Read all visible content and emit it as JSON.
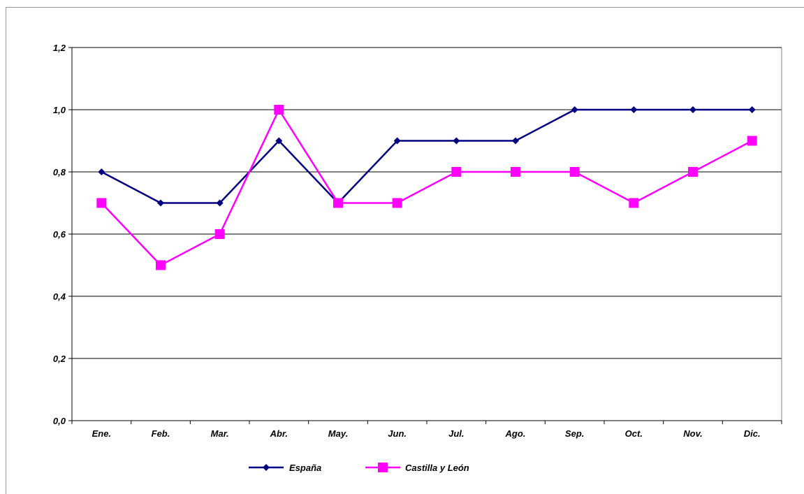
{
  "chart_data": {
    "type": "line",
    "title": "",
    "xlabel": "",
    "ylabel": "",
    "categories": [
      "Ene.",
      "Feb.",
      "Mar.",
      "Abr.",
      "May.",
      "Jun.",
      "Jul.",
      "Ago.",
      "Sep.",
      "Oct.",
      "Nov.",
      "Dic."
    ],
    "ylim": [
      0,
      1.2
    ],
    "yticks": [
      0.0,
      0.2,
      0.4,
      0.6,
      0.8,
      1.0,
      1.2
    ],
    "ytick_labels": [
      "0,0",
      "0,2",
      "0,4",
      "0,6",
      "0,8",
      "1,0",
      "1,2"
    ],
    "grid": true,
    "legend_position": "bottom",
    "series": [
      {
        "name": "España",
        "color": "#000080",
        "marker": "diamond",
        "values": [
          0.8,
          0.7,
          0.7,
          0.9,
          0.7,
          0.9,
          0.9,
          0.9,
          1.0,
          1.0,
          1.0,
          1.0
        ]
      },
      {
        "name": "Castilla y León",
        "color": "#ff00ff",
        "marker": "square",
        "values": [
          0.7,
          0.5,
          0.6,
          1.0,
          0.7,
          0.7,
          0.8,
          0.8,
          0.8,
          0.7,
          0.8,
          0.9
        ]
      }
    ]
  }
}
